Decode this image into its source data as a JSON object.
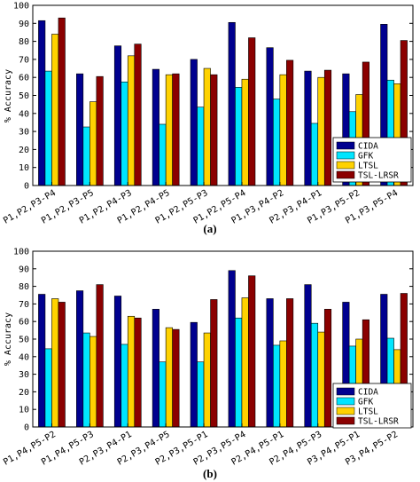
{
  "captions": [
    "(a)",
    "(b)"
  ],
  "colors": {
    "CIDA": "#00008f",
    "GFK": "#00e5ff",
    "LTSL": "#ffd200",
    "TSL-LRSR": "#8b0000"
  },
  "chart_data": [
    {
      "type": "bar",
      "panel": "(a)",
      "title": "",
      "xlabel": "",
      "ylabel": "% Accuracy",
      "ylim": [
        0,
        100
      ],
      "yticks": [
        0,
        10,
        20,
        30,
        40,
        50,
        60,
        70,
        80,
        90,
        100
      ],
      "grid": false,
      "legend_position": "bottom-right",
      "categories": [
        "P1,P2,P3-P4",
        "P1,P2,P3-P5",
        "P1,P2,P4-P3",
        "P1,P2,P4-P5",
        "P1,P2,P5-P3",
        "P1,P2,P5-P4",
        "P1,P3,P4-P2",
        "P2,P3,P4-P1",
        "P1,P3,P5-P2",
        "P1,P3,P5-P4"
      ],
      "series": [
        {
          "name": "CIDA",
          "values": [
            91.5,
            62,
            77.5,
            64.5,
            70,
            90.5,
            76.5,
            63.5,
            62,
            89.5
          ]
        },
        {
          "name": "GFK",
          "values": [
            63.5,
            32.5,
            57.5,
            34,
            43.5,
            54.5,
            48,
            34.5,
            41,
            58.5
          ]
        },
        {
          "name": "LTSL",
          "values": [
            84,
            46.5,
            72,
            61.5,
            65,
            59,
            61.5,
            60,
            50.5,
            56.5
          ]
        },
        {
          "name": "TSL-LRSR",
          "values": [
            93,
            60.5,
            78.5,
            62,
            61.5,
            82,
            69.5,
            64,
            68.5,
            80.5
          ]
        }
      ]
    },
    {
      "type": "bar",
      "panel": "(b)",
      "title": "",
      "xlabel": "",
      "ylabel": "% Accuracy",
      "ylim": [
        0,
        100
      ],
      "yticks": [
        0,
        10,
        20,
        30,
        40,
        50,
        60,
        70,
        80,
        90,
        100
      ],
      "grid": false,
      "legend_position": "bottom-right",
      "categories": [
        "P1,P4,P5-P2",
        "P1,P4,P5-P3",
        "P2,P3,P4-P1",
        "P2,P3,P4-P5",
        "P2,P3,P5-P1",
        "P2,P3,P5-P4",
        "P2,P4,P5-P1",
        "P2,P4,P5-P3",
        "P3,P4,P5-P1",
        "P3,P4,P5-P2"
      ],
      "series": [
        {
          "name": "CIDA",
          "values": [
            75.5,
            77.5,
            74.5,
            67,
            59.5,
            89,
            73,
            81,
            71,
            75.5
          ]
        },
        {
          "name": "GFK",
          "values": [
            44.5,
            53.5,
            47,
            37,
            37,
            62,
            46.5,
            59,
            46,
            50.5
          ]
        },
        {
          "name": "LTSL",
          "values": [
            73,
            51.5,
            63,
            56.5,
            53.5,
            73.5,
            49,
            54,
            50,
            44
          ]
        },
        {
          "name": "TSL-LRSR",
          "values": [
            71,
            81,
            62,
            55.5,
            72.5,
            86,
            73,
            67,
            61,
            76
          ]
        }
      ]
    }
  ]
}
